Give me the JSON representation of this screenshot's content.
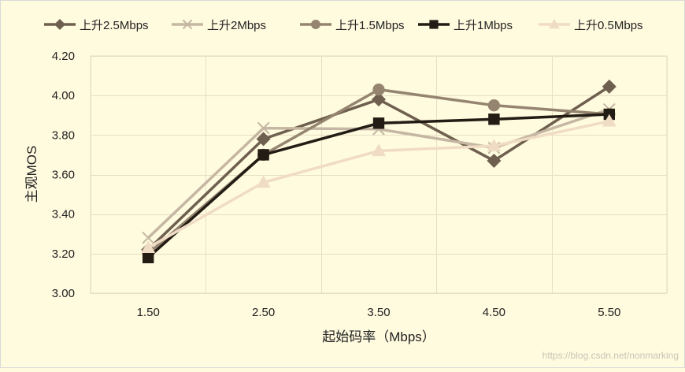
{
  "chart_data": {
    "type": "line",
    "title": "",
    "xlabel": "起始码率（Mbps）",
    "ylabel": "主观MOS",
    "categories": [
      "1.50",
      "2.50",
      "3.50",
      "4.50",
      "5.50"
    ],
    "ylim": [
      3.0,
      4.2
    ],
    "yticks": [
      "3.00",
      "3.20",
      "3.40",
      "3.60",
      "3.80",
      "4.00",
      "4.20"
    ],
    "grid": true,
    "legend_position": "top",
    "series": [
      {
        "name": "上升2.5Mbps",
        "marker": "diamond",
        "color": "#6e5f4e",
        "values": [
          3.22,
          3.78,
          3.98,
          3.67,
          4.045
        ]
      },
      {
        "name": "上升2Mbps",
        "marker": "x",
        "color": "#c5b7a3",
        "values": [
          3.28,
          3.835,
          3.83,
          3.735,
          3.93
        ]
      },
      {
        "name": "上升1.5Mbps",
        "marker": "circle",
        "color": "#958570",
        "values": [
          3.2,
          3.7,
          4.03,
          3.95,
          3.905
        ]
      },
      {
        "name": "上升1Mbps",
        "marker": "square",
        "color": "#231c14",
        "values": [
          3.18,
          3.7,
          3.86,
          3.88,
          3.905
        ]
      },
      {
        "name": "上升0.5Mbps",
        "marker": "triangle",
        "color": "#f0dcc4",
        "values": [
          3.23,
          3.56,
          3.72,
          3.745,
          3.87
        ]
      }
    ]
  },
  "watermark": "https://blog.csdn.net/nonmarking"
}
